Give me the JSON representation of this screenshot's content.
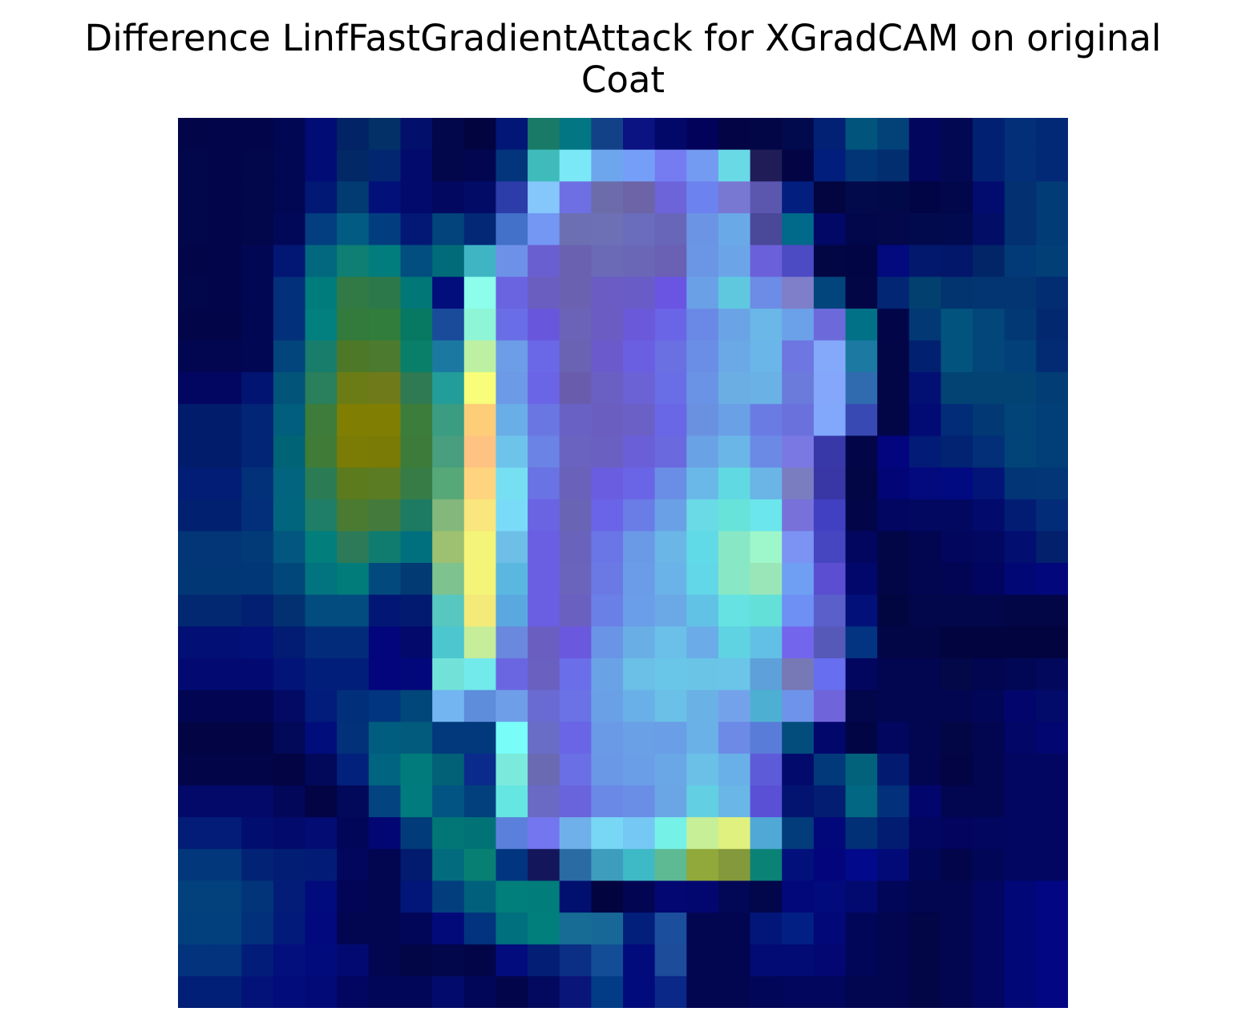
{
  "chart_data": {
    "type": "heatmap",
    "title_lines": [
      "Difference LinfFastGradientAttack for XGradCAM on original",
      "Coat"
    ],
    "colormap": "jet blended over grayscale image",
    "axes_visible": false,
    "rows": 28,
    "cols": 28,
    "cells": [
      [
        "#020649",
        "#02054a",
        "#02054a",
        "#020753",
        "#020c75",
        "#022366",
        "#023067",
        "#02106b",
        "#02064a",
        "#020440",
        "#021677",
        "#197b67",
        "#027683",
        "#134188",
        "#0b1282",
        "#020868",
        "#02025a",
        "#020445",
        "#020646",
        "#020a4e",
        "#022074",
        "#01557d",
        "#024278",
        "#02065c",
        "#020851",
        "#022072",
        "#022f77",
        "#022976"
      ],
      [
        "#02064a",
        "#02054a",
        "#02064a",
        "#020753",
        "#020c75",
        "#022966",
        "#022670",
        "#020a6c",
        "#02064a",
        "#020650",
        "#02357c",
        "#3fbbbc",
        "#7ae8f7",
        "#6ea6ee",
        "#759ef9",
        "#757cf1",
        "#739bf2",
        "#69d9e6",
        "#1f1c57",
        "#020444",
        "#021e7c",
        "#023576",
        "#022e70",
        "#02065c",
        "#020851",
        "#022072",
        "#022f77",
        "#022976"
      ],
      [
        "#02064a",
        "#02054a",
        "#02064a",
        "#020753",
        "#021875",
        "#023a72",
        "#02117a",
        "#020a6c",
        "#020860",
        "#020c66",
        "#2c3da9",
        "#85c6fb",
        "#6e6fe2",
        "#6c6caa",
        "#6c64a7",
        "#6c64d8",
        "#6c82ef",
        "#7877d2",
        "#5b57af",
        "#021e7e",
        "#02053f",
        "#020a4b",
        "#020949",
        "#020545",
        "#02064a",
        "#020c6e",
        "#023071",
        "#023c77"
      ],
      [
        "#02064a",
        "#02054a",
        "#02064a",
        "#020858",
        "#023e80",
        "#025b82",
        "#023e7f",
        "#021874",
        "#02447b",
        "#022876",
        "#4370c9",
        "#7397f2",
        "#6d6fb3",
        "#6e70b5",
        "#6a6dbb",
        "#6866b8",
        "#6c94e4",
        "#6aa9e8",
        "#4a4899",
        "#016989",
        "#020866",
        "#02064a",
        "#020849",
        "#020a4e",
        "#020a4f",
        "#020d66",
        "#023071",
        "#023c77"
      ],
      [
        "#020649",
        "#02054a",
        "#020753",
        "#021674",
        "#02687e",
        "#0e7f72",
        "#017d7d",
        "#024e7f",
        "#026b79",
        "#3fb5c4",
        "#6e91e8",
        "#6a5fd0",
        "#6a62b0",
        "#6a6ab7",
        "#6a67b7",
        "#6a60b4",
        "#6b95e5",
        "#6ba5e8",
        "#6a60d9",
        "#4c4bc4",
        "#020743",
        "#020544",
        "#020a7d",
        "#02186d",
        "#02166a",
        "#022568",
        "#023a77",
        "#023f77"
      ],
      [
        "#02064a",
        "#02054a",
        "#020753",
        "#02307a",
        "#017c7d",
        "#327a45",
        "#2d784a",
        "#017777",
        "#020e7b",
        "#8cfeeb",
        "#6a64e0",
        "#6a5fc0",
        "#6a62b0",
        "#6a5cc2",
        "#6a5cc7",
        "#6a55e3",
        "#6aa1e6",
        "#5fc8df",
        "#6c8ce5",
        "#7f7ec8",
        "#02447c",
        "#020644",
        "#022674",
        "#02406f",
        "#023470",
        "#023571",
        "#023571",
        "#022d73"
      ],
      [
        "#020649",
        "#020649",
        "#020753",
        "#02307a",
        "#028080",
        "#337a3d",
        "#317d3c",
        "#077862",
        "#1a4b9b",
        "#8ef5d7",
        "#6a6ee6",
        "#6857dc",
        "#6a63b8",
        "#6a5cc2",
        "#6a59d8",
        "#6a64e6",
        "#6a89e6",
        "#6aa4e6",
        "#6ab7e8",
        "#6aa1e8",
        "#6c69db",
        "#017187",
        "#020649",
        "#023975",
        "#02537e",
        "#02467a",
        "#023975",
        "#02296f"
      ],
      [
        "#020651",
        "#020651",
        "#020754",
        "#02457c",
        "#197d6b",
        "#4d7828",
        "#4c7a2f",
        "#097f6a",
        "#1b79a1",
        "#bdf0a3",
        "#6c9de6",
        "#6a68e6",
        "#6a62b3",
        "#6a5acc",
        "#6a5fe1",
        "#6a6fe2",
        "#6a8ee5",
        "#6aa8e6",
        "#6ab6e8",
        "#6d76e1",
        "#84a8fa",
        "#1c79a2",
        "#020646",
        "#022070",
        "#02537e",
        "#02467a",
        "#02407a",
        "#022b73"
      ],
      [
        "#020660",
        "#020660",
        "#021472",
        "#025479",
        "#2a7f5c",
        "#6b7c17",
        "#6f7a1a",
        "#2f7a52",
        "#229d9a",
        "#f8fe79",
        "#6c9ae6",
        "#6a65e6",
        "#6a5cad",
        "#6a60c3",
        "#6a62d5",
        "#6a6ee6",
        "#6a93e5",
        "#6aaee3",
        "#6ab2e5",
        "#6a7bdc",
        "#84a7fb",
        "#306bb0",
        "#020646",
        "#021074",
        "#024374",
        "#024374",
        "#024374",
        "#023e75"
      ],
      [
        "#021c6c",
        "#021c6c",
        "#022575",
        "#015e7d",
        "#3d7c3a",
        "#807f04",
        "#807f03",
        "#3d7d3c",
        "#3a9d82",
        "#fecd78",
        "#6aaee7",
        "#6a77e2",
        "#6a61c4",
        "#6a5fc0",
        "#6a60c6",
        "#6a67e6",
        "#6a91e0",
        "#6aa0e6",
        "#6a7ce3",
        "#6a71dc",
        "#82a8fc",
        "#3849b3",
        "#020646",
        "#020a74",
        "#022c77",
        "#023874",
        "#024378",
        "#023e77"
      ],
      [
        "#021c6c",
        "#021c6c",
        "#022575",
        "#016475",
        "#407c38",
        "#7b7c06",
        "#7a7a06",
        "#3d7b3a",
        "#489e7e",
        "#fec382",
        "#6ec3ea",
        "#6a83e5",
        "#6a63c0",
        "#6a60c2",
        "#6a5fd7",
        "#6a69de",
        "#6aa2e6",
        "#6ab6e6",
        "#6a8ae6",
        "#7a78e2",
        "#3838a8",
        "#020649",
        "#02057d",
        "#021b77",
        "#022371",
        "#022f77",
        "#024378",
        "#023e77"
      ],
      [
        "#021d75",
        "#021d75",
        "#02317a",
        "#02647f",
        "#2b7c55",
        "#5c7b1d",
        "#5b7c22",
        "#377c46",
        "#57a878",
        "#fed47e",
        "#76dff2",
        "#6a73e3",
        "#6a61ba",
        "#6a5de0",
        "#6a65e6",
        "#6a8ee5",
        "#6ab8e8",
        "#61d9e2",
        "#6ab4e6",
        "#7a7dc0",
        "#3937a5",
        "#020644",
        "#020575",
        "#020a7e",
        "#020a82",
        "#021478",
        "#023576",
        "#023677"
      ],
      [
        "#022070",
        "#022070",
        "#022e7a",
        "#01657d",
        "#1f7e66",
        "#4a7b31",
        "#447b3d",
        "#1e7b63",
        "#83b77b",
        "#f9e67c",
        "#79dbf7",
        "#6a64e3",
        "#6a64b5",
        "#6a64e8",
        "#6a7ce6",
        "#6aa0e5",
        "#6adbe6",
        "#68e3da",
        "#6ae6ec",
        "#7771d9",
        "#4140c3",
        "#020649",
        "#020660",
        "#020760",
        "#020760",
        "#020a6c",
        "#021c74",
        "#022c77"
      ],
      [
        "#023676",
        "#023676",
        "#023a77",
        "#02567f",
        "#027e7d",
        "#2d7a59",
        "#107c70",
        "#01707e",
        "#9dc170",
        "#f4f478",
        "#6ebfe8",
        "#6a5fe3",
        "#6a63bc",
        "#6a75e6",
        "#6a99e6",
        "#6ab6e6",
        "#61dae8",
        "#88e8c6",
        "#9ef7ca",
        "#7c93f4",
        "#4546c0",
        "#02065e",
        "#020646",
        "#020550",
        "#02065c",
        "#020860",
        "#020e70",
        "#02206c"
      ],
      [
        "#023775",
        "#023775",
        "#023777",
        "#024779",
        "#02747f",
        "#017c7b",
        "#024a7e",
        "#023a73",
        "#7ec290",
        "#f4f478",
        "#5ab8e0",
        "#6a5fe3",
        "#6a64bd",
        "#6a79e3",
        "#6a9ce8",
        "#6ab3e8",
        "#62d7e8",
        "#88e8c6",
        "#9ae6b9",
        "#6e9ff2",
        "#5b4ed1",
        "#02076c",
        "#020646",
        "#02054f",
        "#020553",
        "#020560",
        "#020776",
        "#02087c"
      ],
      [
        "#022871",
        "#022871",
        "#021f71",
        "#023071",
        "#024c7f",
        "#024c7f",
        "#021775",
        "#021a6f",
        "#58c7c0",
        "#f4ea79",
        "#5aa8e0",
        "#6a5fe3",
        "#6a60c0",
        "#6a80e6",
        "#6a9ee8",
        "#6aa9e6",
        "#62c2e6",
        "#66e2e3",
        "#63e0d8",
        "#6e8ff4",
        "#5b5fca",
        "#02117a",
        "#020640",
        "#02064a",
        "#02064a",
        "#02064a",
        "#020646",
        "#020646"
      ],
      [
        "#020f74",
        "#020f74",
        "#02117a",
        "#021c73",
        "#022c7a",
        "#022c7a",
        "#02057c",
        "#02096b",
        "#4cc6cf",
        "#c6ed99",
        "#6a89de",
        "#6a5fc1",
        "#6a58de",
        "#6a94e5",
        "#6aaee6",
        "#6ac0e8",
        "#6aabe8",
        "#5fd3e1",
        "#62c0e6",
        "#7366ed",
        "#5659b8",
        "#023482",
        "#020546",
        "#020546",
        "#020440",
        "#020440",
        "#020440",
        "#020440"
      ],
      [
        "#020a72",
        "#020a72",
        "#020a72",
        "#021477",
        "#021e7b",
        "#021e7b",
        "#02057c",
        "#02087a",
        "#72e2d9",
        "#72e9eb",
        "#6a66e1",
        "#6a60c0",
        "#6a6ee9",
        "#6aa2e6",
        "#6ac0e6",
        "#6ac6e8",
        "#6ac4e6",
        "#6ac5e8",
        "#5ea0d9",
        "#7778b6",
        "#686ef0",
        "#02065e",
        "#020550",
        "#020550",
        "#020848",
        "#020550",
        "#020755",
        "#02095c"
      ],
      [
        "#020652",
        "#020652",
        "#020652",
        "#020a64",
        "#021c7b",
        "#022f79",
        "#02357f",
        "#02477a",
        "#72b5f0",
        "#5d8ddb",
        "#6f9ee9",
        "#6a6bd2",
        "#6a72e6",
        "#6aa1e6",
        "#6ab0e8",
        "#6ac0e6",
        "#6ab1e6",
        "#74a2ea",
        "#4db0d2",
        "#6e93ea",
        "#7064db",
        "#02064a",
        "#020650",
        "#020650",
        "#020650",
        "#020657",
        "#02066c",
        "#020a6a"
      ],
      [
        "#020444",
        "#020444",
        "#020444",
        "#020958",
        "#020d7c",
        "#02317a",
        "#015d80",
        "#025b7c",
        "#02387c",
        "#02387c",
        "#78fdf8",
        "#6a6dc6",
        "#6a64e6",
        "#6a9ae6",
        "#6aa0e6",
        "#6a9ee6",
        "#6ab1e8",
        "#6c8ae6",
        "#5a7cd9",
        "#024d7c",
        "#02076c",
        "#020544",
        "#02065e",
        "#020650",
        "#020644",
        "#020650",
        "#020666",
        "#020670"
      ],
      [
        "#020648",
        "#020648",
        "#020648",
        "#020443",
        "#02085a",
        "#02217c",
        "#016480",
        "#017b7b",
        "#026077",
        "#0a2b8b",
        "#7be9db",
        "#6a6ab3",
        "#6a6fe5",
        "#6a97e6",
        "#6a9ee6",
        "#6aa7e6",
        "#6ac0e6",
        "#6ab0e8",
        "#5e5bd9",
        "#020a6c",
        "#02397b",
        "#02627b",
        "#021a70",
        "#020550",
        "#020444",
        "#020550",
        "#020660",
        "#020660"
      ],
      [
        "#020968",
        "#020968",
        "#020968",
        "#02075a",
        "#020443",
        "#02085a",
        "#024380",
        "#017b7d",
        "#025482",
        "#023f7d",
        "#66e6e2",
        "#6a6ac4",
        "#6a64dc",
        "#6a88e6",
        "#6a8de6",
        "#6aa6e6",
        "#62d0e2",
        "#6ab6e6",
        "#5a50d6",
        "#021470",
        "#021d72",
        "#026782",
        "#02307a",
        "#02066c",
        "#020550",
        "#020550",
        "#020660",
        "#020660"
      ],
      [
        "#021c77",
        "#021c77",
        "#020d70",
        "#020a6c",
        "#020c73",
        "#020659",
        "#020673",
        "#023b79",
        "#027677",
        "#017377",
        "#5b80db",
        "#7376ef",
        "#70b0ea",
        "#78d7f4",
        "#76c8f4",
        "#76f1e8",
        "#c6ef98",
        "#e0f17f",
        "#50a8d6",
        "#023c7b",
        "#02087a",
        "#023076",
        "#021c71",
        "#020661",
        "#02045e",
        "#02065e",
        "#020660",
        "#020660"
      ],
      [
        "#02377b",
        "#02377b",
        "#022375",
        "#021e74",
        "#021c76",
        "#02065d",
        "#020550",
        "#021b6e",
        "#026c7e",
        "#078073",
        "#023580",
        "#14165b",
        "#2a6ba4",
        "#3e9cbc",
        "#3eb9c6",
        "#5eba92",
        "#91a83a",
        "#84993b",
        "#0a8275",
        "#02107c",
        "#02057c",
        "#02098a",
        "#020a78",
        "#020656",
        "#02054a",
        "#020657",
        "#020660",
        "#020660"
      ],
      [
        "#02417c",
        "#02417c",
        "#023479",
        "#021c78",
        "#020b7c",
        "#020555",
        "#020550",
        "#021578",
        "#023e7e",
        "#01617c",
        "#007f7b",
        "#017d7c",
        "#01106f",
        "#020440",
        "#020652",
        "#020772",
        "#020770",
        "#020756",
        "#02064a",
        "#02087a",
        "#020b7b",
        "#020a70",
        "#020658",
        "#020550",
        "#020650",
        "#020660",
        "#020778",
        "#020683"
      ],
      [
        "#02407d",
        "#02407d",
        "#02307b",
        "#021a79",
        "#02087d",
        "#020550",
        "#020550",
        "#020658",
        "#020a7a",
        "#02337e",
        "#01707e",
        "#007f7c",
        "#176c95",
        "#186897",
        "#021f7c",
        "#1b4f9d",
        "#020550",
        "#020550",
        "#021679",
        "#022083",
        "#020878",
        "#020658",
        "#020550",
        "#020546",
        "#020650",
        "#020660",
        "#020778",
        "#020683"
      ],
      [
        "#02337c",
        "#02337c",
        "#021c79",
        "#020f7c",
        "#020b7c",
        "#020a72",
        "#020550",
        "#020546",
        "#02064a",
        "#020648",
        "#020c7c",
        "#021f75",
        "#0b2f85",
        "#134d96",
        "#020b7c",
        "#1c4c9a",
        "#020550",
        "#020550",
        "#020a73",
        "#020a73",
        "#020771",
        "#020658",
        "#020550",
        "#020546",
        "#020650",
        "#020660",
        "#020778",
        "#020683"
      ],
      [
        "#021f77",
        "#021f77",
        "#021279",
        "#020d7b",
        "#020a78",
        "#020660",
        "#020658",
        "#020658",
        "#020b6b",
        "#020658",
        "#020549",
        "#02095e",
        "#0a157a",
        "#023b86",
        "#020b7c",
        "#0a2887",
        "#020550",
        "#020550",
        "#020658",
        "#02065c",
        "#02065c",
        "#020550",
        "#020550",
        "#020546",
        "#020650",
        "#020660",
        "#020778",
        "#020683"
      ]
    ]
  }
}
